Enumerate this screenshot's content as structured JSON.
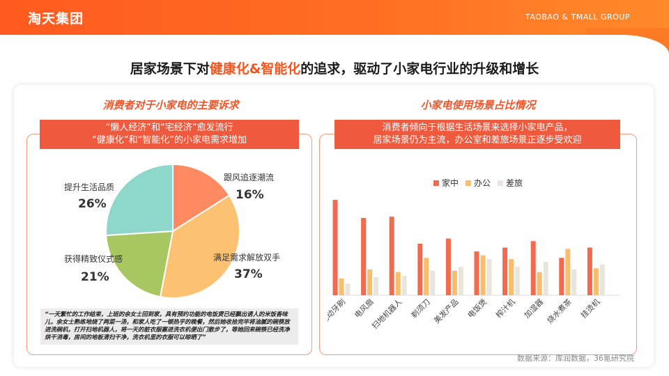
{
  "header": {
    "brand": "淘天集团",
    "brand_en": "TAOBAO & TMALL GROUP"
  },
  "headline": {
    "pre": "居家场景下对",
    "highlight": "健康化&智能化",
    "post": "的追求，驱动了小家电行业的升级和增长"
  },
  "left": {
    "title": "消费者对于小家电的主要诉求",
    "banner_line1": "“懒人经济”和“宅经济”愈发流行",
    "banner_line2": "“健康化”和“智能化”的小家电需求增加",
    "quote": "“一天繁忙的工作结束，上班的余女士回到家，具有预约功能的电饭煲已经飘出诱人的米饭香味儿，余女士熟练地烧了两菜一汤，和家人吃了一顿热乎的晚餐，然后她收拾完毕将油腻的碗筷放进洗碗机，打开扫地机器人，将一天的脏衣服塞进洗衣机便出门散步了，等她回来碗筷已经洗净烘干消毒，房间的地板清扫干净，洗衣机里的衣服可以晾晒了”"
  },
  "right": {
    "title": "小家电使用场景占比情况",
    "banner_line1": "消费者倾向于根据生活场景来选择小家电产品，",
    "banner_line2": "居家场景仍为主流，办公室和差旅场景正逐步受欢迎"
  },
  "source": "数据来源：库润数据，36氪研究院",
  "colors": {
    "home": "#f26b4f",
    "office": "#f9bd6c",
    "travel": "#e9e5dc",
    "pie_orange": "#fd8a60",
    "pie_yellow": "#fdc271",
    "pie_green": "#a8c760",
    "pie_teal": "#8dd7cb"
  },
  "chart_data": [
    {
      "type": "pie",
      "slices": [
        {
          "label": "跟风追逐潮流",
          "value": 16,
          "pct_text": "16%"
        },
        {
          "label": "满足需求解放双手",
          "value": 37,
          "pct_text": "37%"
        },
        {
          "label": "获得精致仪式感",
          "value": 21,
          "pct_text": "21%"
        },
        {
          "label": "提升生活品质",
          "value": 26,
          "pct_text": "26%"
        }
      ]
    },
    {
      "type": "bar",
      "categories": [
        "电动牙刷",
        "电风扇",
        "扫地机器人",
        "剃须刀",
        "美发产品",
        "电饭煲",
        "榨汁机",
        "加湿器",
        "烧水煮茶",
        "挂烫机"
      ],
      "series": [
        {
          "name": "家中",
          "values": [
            74,
            60,
            61,
            40,
            44,
            34,
            37,
            42,
            29,
            37
          ]
        },
        {
          "name": "办公",
          "values": [
            13,
            20,
            18,
            29,
            19,
            31,
            28,
            18,
            36,
            21
          ]
        },
        {
          "name": "差旅",
          "values": [
            9,
            14,
            15,
            19,
            22,
            28,
            22,
            26,
            20,
            24
          ]
        }
      ],
      "ylim": [
        0,
        80
      ]
    }
  ]
}
